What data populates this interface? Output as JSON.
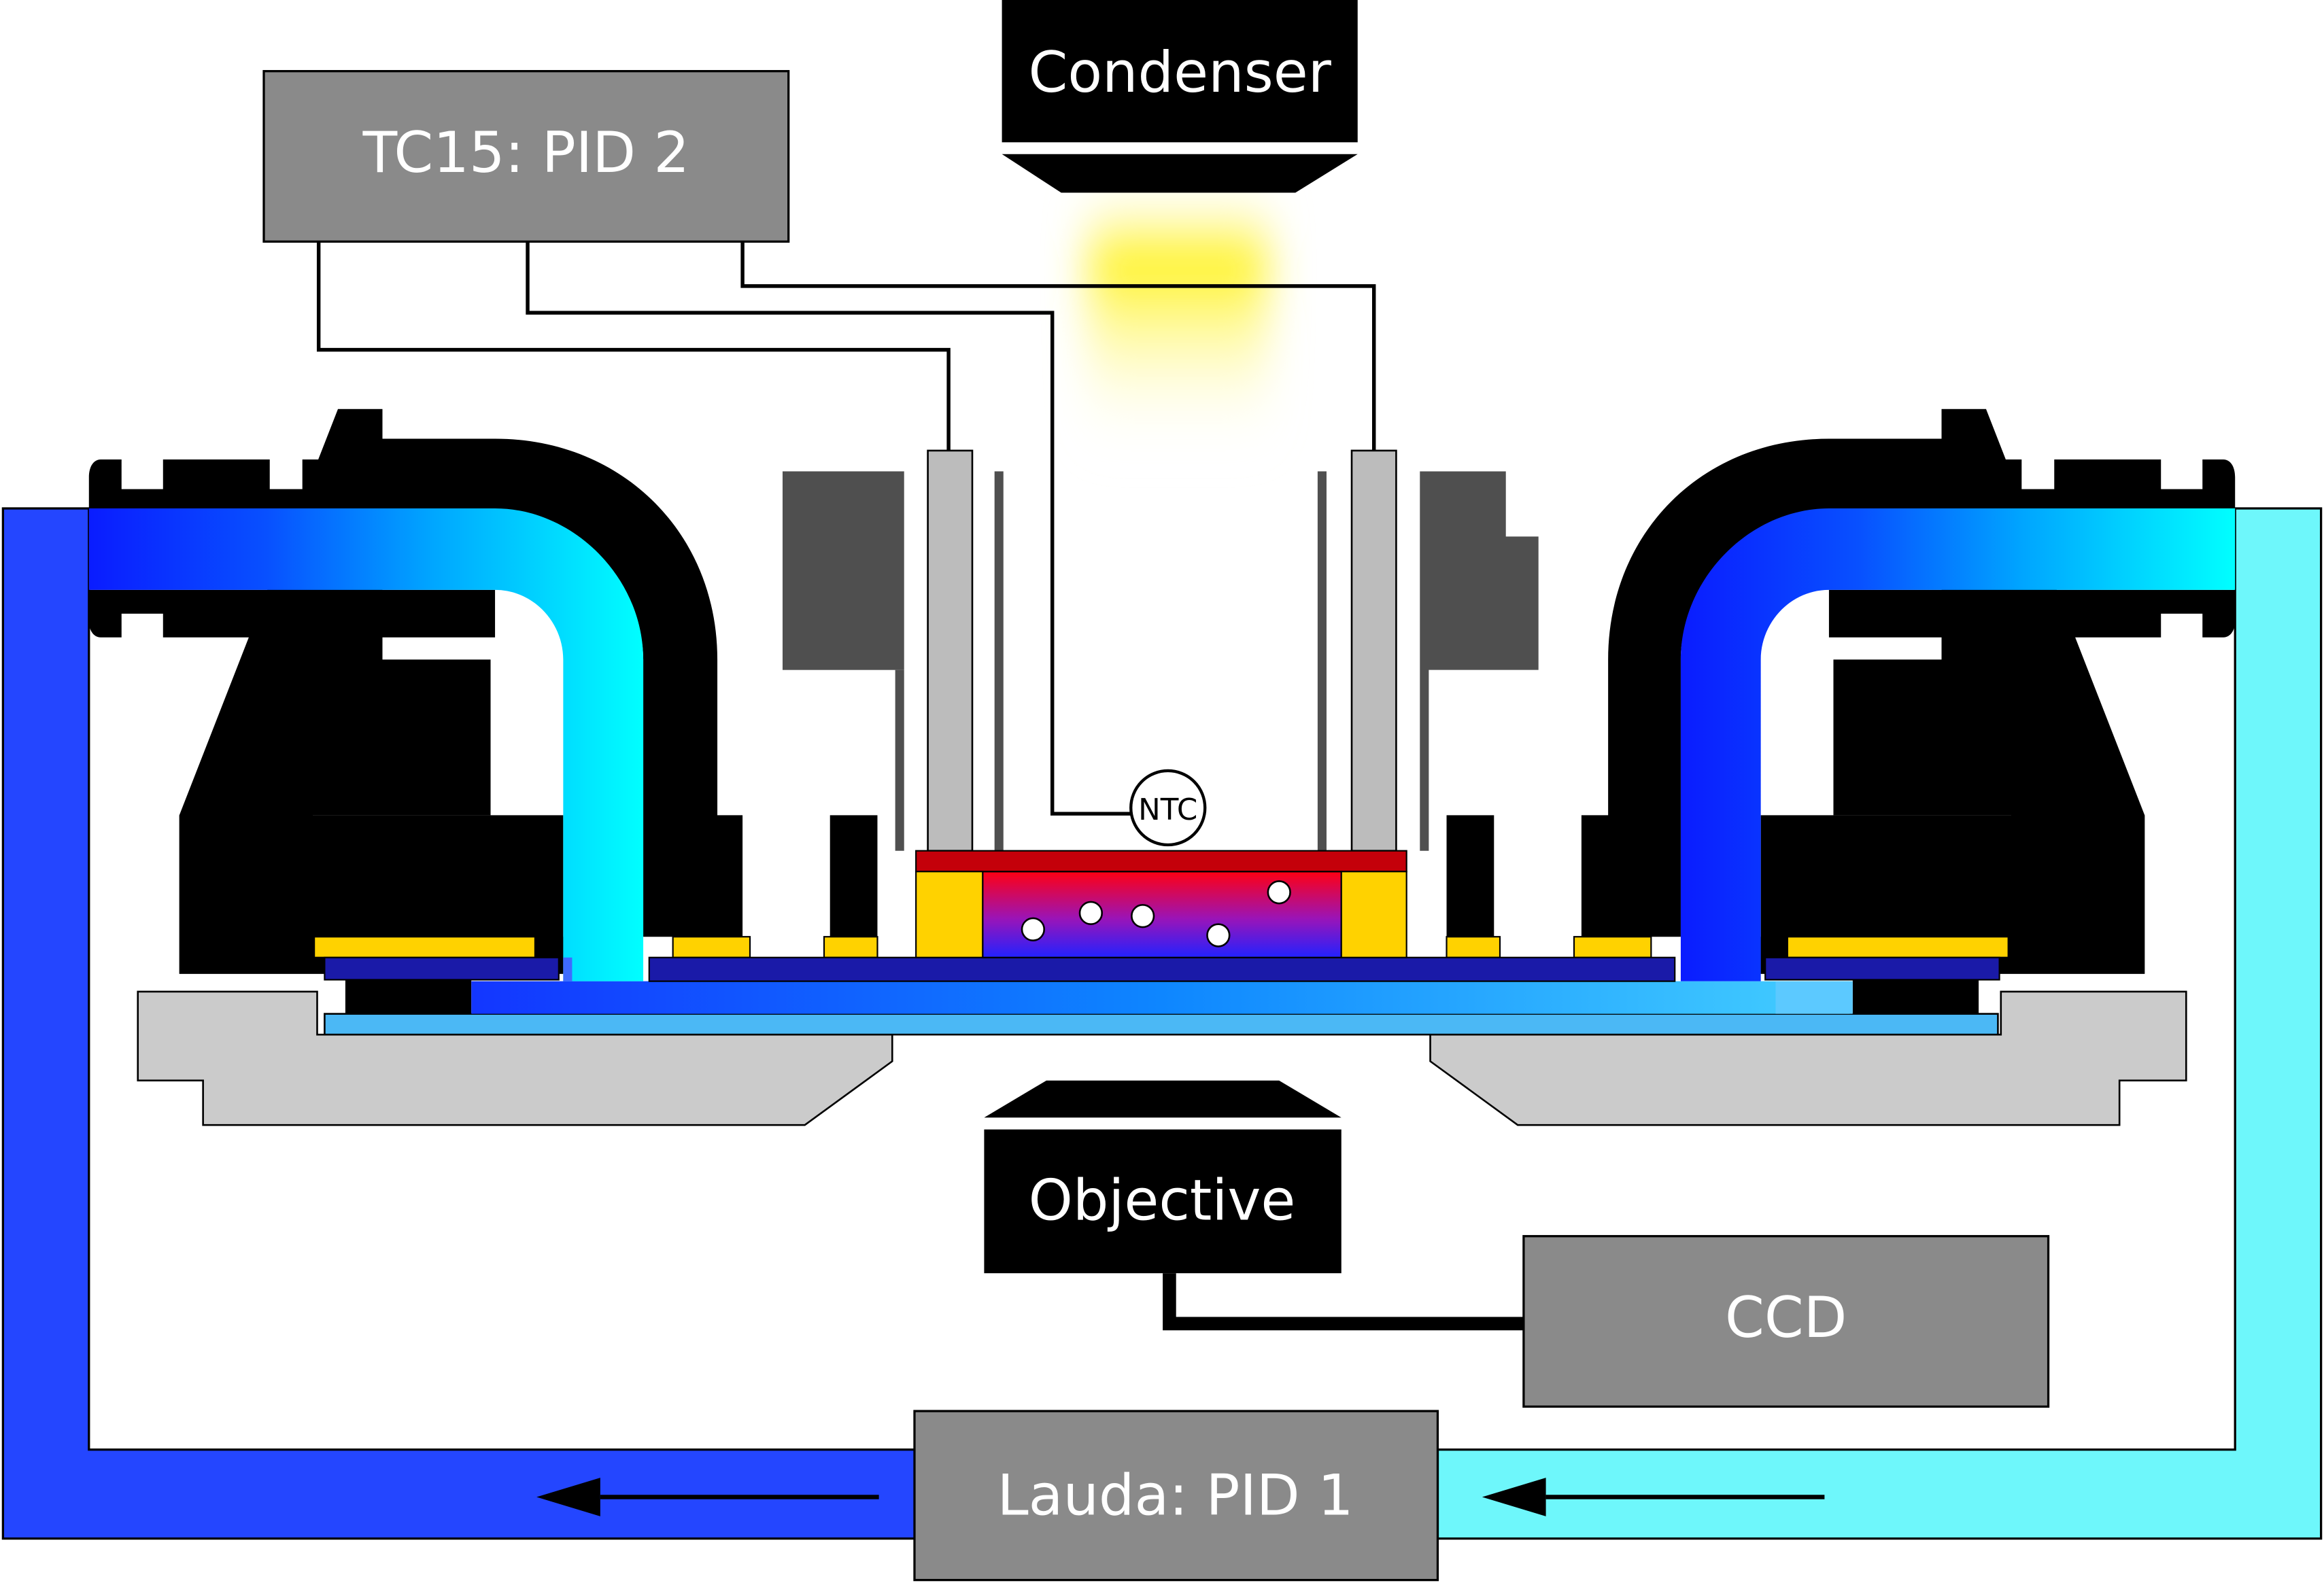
{
  "labels": {
    "tc15": "TC15: PID 2",
    "condenser": "Condenser",
    "ntc": "NTC",
    "objective": "Objective",
    "ccd": "CCD",
    "lauda": "Lauda: PID 1"
  },
  "colors": {
    "controller_box": "#8a8a8a",
    "device_black": "#000000",
    "stage_grey": "#cbcbcb",
    "holder_grey": "#4f4f4f",
    "electrode_grey": "#bcbcbc",
    "pipe_cold": "#2446ff",
    "pipe_warm": "#6ef7fb",
    "gold": "#ffd200",
    "heater_red": "#c4000a",
    "plate_navy": "#1a1aa8",
    "light_yellow": "#fff21a"
  },
  "icons": [
    "arrow-left-icon"
  ]
}
